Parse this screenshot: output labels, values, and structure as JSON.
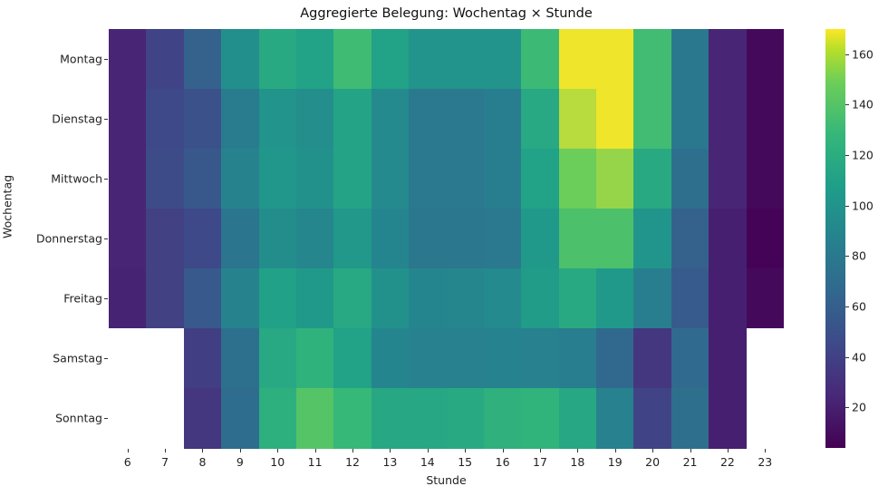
{
  "chart_data": {
    "type": "heatmap",
    "title": "Aggregierte Belegung: Wochentag × Stunde",
    "xlabel": "Stunde",
    "ylabel": "Wochentag",
    "x": [
      "6",
      "7",
      "8",
      "9",
      "10",
      "11",
      "12",
      "13",
      "14",
      "15",
      "16",
      "17",
      "18",
      "19",
      "20",
      "21",
      "22",
      "23"
    ],
    "y": [
      "Montag",
      "Dienstag",
      "Mittwoch",
      "Donnerstag",
      "Freitag",
      "Samstag",
      "Sonntag"
    ],
    "values": [
      [
        23,
        42,
        62,
        97,
        117,
        111,
        132,
        111,
        100,
        100,
        100,
        131,
        168,
        168,
        133,
        79,
        23,
        8
      ],
      [
        23,
        45,
        50,
        82,
        100,
        96,
        112,
        93,
        80,
        80,
        84,
        116,
        160,
        168,
        133,
        79,
        23,
        8
      ],
      [
        23,
        47,
        55,
        88,
        102,
        98,
        112,
        93,
        80,
        80,
        83,
        111,
        148,
        155,
        117,
        72,
        23,
        8
      ],
      [
        23,
        40,
        45,
        77,
        95,
        90,
        103,
        89,
        78,
        78,
        80,
        104,
        137,
        137,
        101,
        62,
        20,
        5
      ],
      [
        22,
        40,
        56,
        88,
        110,
        104,
        116,
        98,
        89,
        91,
        93,
        106,
        117,
        104,
        84,
        57,
        20,
        8
      ],
      [
        null,
        null,
        38,
        73,
        116,
        124,
        111,
        89,
        86,
        86,
        87,
        86,
        83,
        67,
        33,
        68,
        20,
        null
      ],
      [
        null,
        null,
        33,
        70,
        122,
        140,
        129,
        115,
        115,
        117,
        123,
        125,
        115,
        86,
        42,
        72,
        20,
        null
      ]
    ],
    "colormap": "viridis",
    "colorbar": {
      "min": 4,
      "max": 170,
      "ticks": [
        20,
        40,
        60,
        80,
        100,
        120,
        140,
        160
      ]
    },
    "missing_color": "#ffffff",
    "grid": false,
    "legend_position": "right (colorbar)"
  }
}
